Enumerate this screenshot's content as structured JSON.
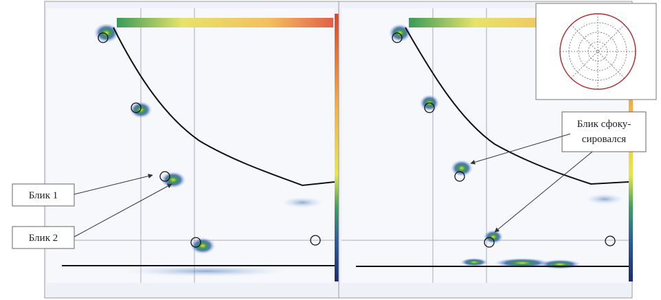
{
  "callouts": [
    {
      "lines": [
        "Блик 1"
      ]
    },
    {
      "lines": [
        "Блик 2"
      ]
    },
    {
      "lines": [
        "Блик сфоку-",
        "сировался"
      ]
    }
  ]
}
